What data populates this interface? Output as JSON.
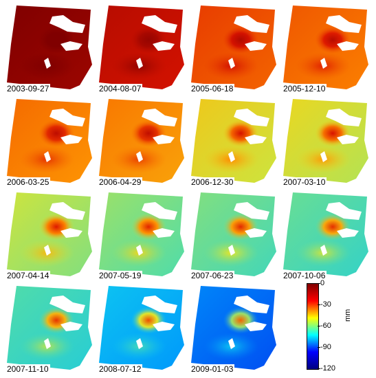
{
  "panels": [
    {
      "date": "2003-09-27",
      "level": 0.0
    },
    {
      "date": "2004-08-07",
      "level": 0.12
    },
    {
      "date": "2005-06-18",
      "level": 0.26
    },
    {
      "date": "2005-12-10",
      "level": 0.3
    },
    {
      "date": "2006-03-25",
      "level": 0.33
    },
    {
      "date": "2006-04-29",
      "level": 0.35
    },
    {
      "date": "2006-12-30",
      "level": 0.46
    },
    {
      "date": "2007-03-10",
      "level": 0.48
    },
    {
      "date": "2007-04-14",
      "level": 0.52
    },
    {
      "date": "2007-05-19",
      "level": 0.56
    },
    {
      "date": "2007-06-23",
      "level": 0.58
    },
    {
      "date": "2007-10-06",
      "level": 0.6
    },
    {
      "date": "2007-11-10",
      "level": 0.62
    },
    {
      "date": "2008-07-12",
      "level": 0.72
    },
    {
      "date": "2009-01-03",
      "level": 0.8
    }
  ],
  "colorbar": {
    "unit": "mm",
    "ticks": [
      "0",
      "-30",
      "-60",
      "-90",
      "-120"
    ],
    "colors": [
      "#800000",
      "#ff0000",
      "#ffff00",
      "#00ffff",
      "#0000ff",
      "#000080"
    ]
  },
  "colors": {
    "background": "#ffffff",
    "nodata": "#ffffff"
  }
}
